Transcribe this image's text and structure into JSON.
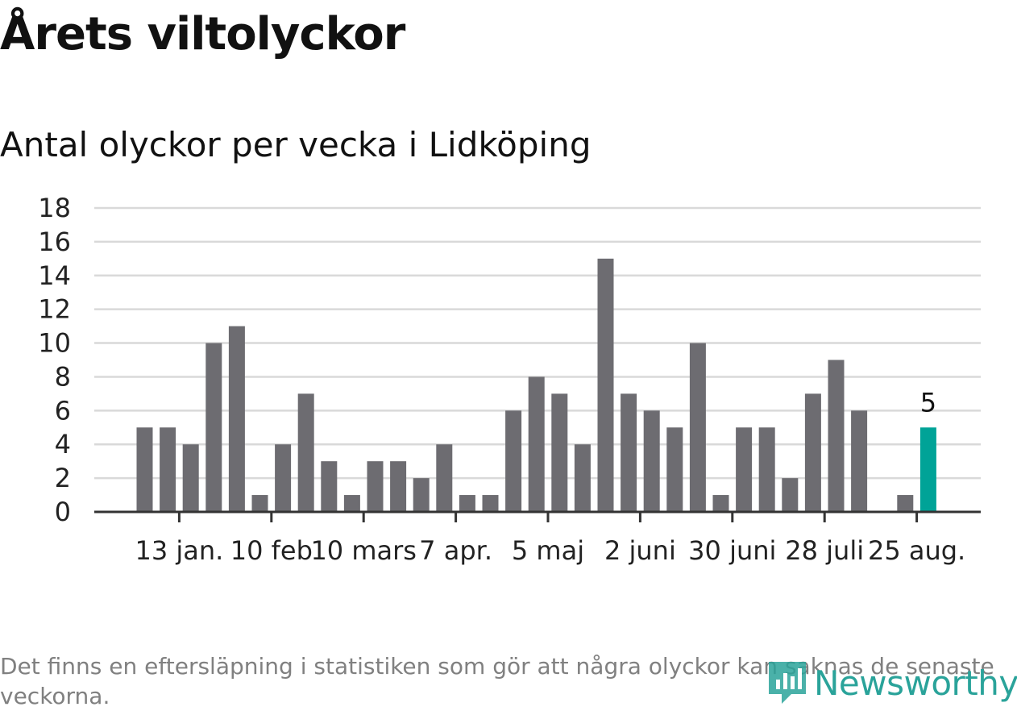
{
  "title": "Årets viltolyckor",
  "subtitle": "Antal olyckor per vecka i Lidköping",
  "footnote": "Det finns en eftersläpning i statistiken som gör att några olyckor kan saknas de senaste veckorna.",
  "brand": {
    "name": "Newsworthy",
    "icon": "newsworthy-logo-icon",
    "color": "#2aa39a"
  },
  "colors": {
    "bar": "#6d6c71",
    "highlight": "#00a397",
    "grid": "#d9d9d9",
    "axis": "#333333"
  },
  "chart_data": {
    "type": "bar",
    "title": "Årets viltolyckor",
    "subtitle": "Antal olyckor per vecka i Lidköping",
    "xlabel": "",
    "ylabel": "",
    "ylim": [
      0,
      18
    ],
    "yticks": [
      0,
      2,
      4,
      6,
      8,
      10,
      12,
      14,
      16,
      18
    ],
    "grid": true,
    "x_tick_labels": [
      {
        "label": "13 jan.",
        "week_index": 1.5
      },
      {
        "label": "10 feb",
        "week_index": 5.5
      },
      {
        "label": "10 mars",
        "week_index": 9.5
      },
      {
        "label": "7 apr.",
        "week_index": 13.5
      },
      {
        "label": "5 maj",
        "week_index": 17.5
      },
      {
        "label": "2 juni",
        "week_index": 21.5
      },
      {
        "label": "30 juni",
        "week_index": 25.5
      },
      {
        "label": "28 juli",
        "week_index": 29.5
      },
      {
        "label": "25 aug.",
        "week_index": 33.5
      }
    ],
    "values": [
      5,
      5,
      4,
      10,
      11,
      1,
      4,
      7,
      3,
      1,
      3,
      3,
      2,
      4,
      1,
      1,
      6,
      8,
      7,
      4,
      15,
      7,
      6,
      5,
      10,
      1,
      5,
      5,
      2,
      7,
      9,
      6,
      0,
      1,
      5
    ],
    "highlight_index": 34,
    "highlight_label": "5"
  }
}
